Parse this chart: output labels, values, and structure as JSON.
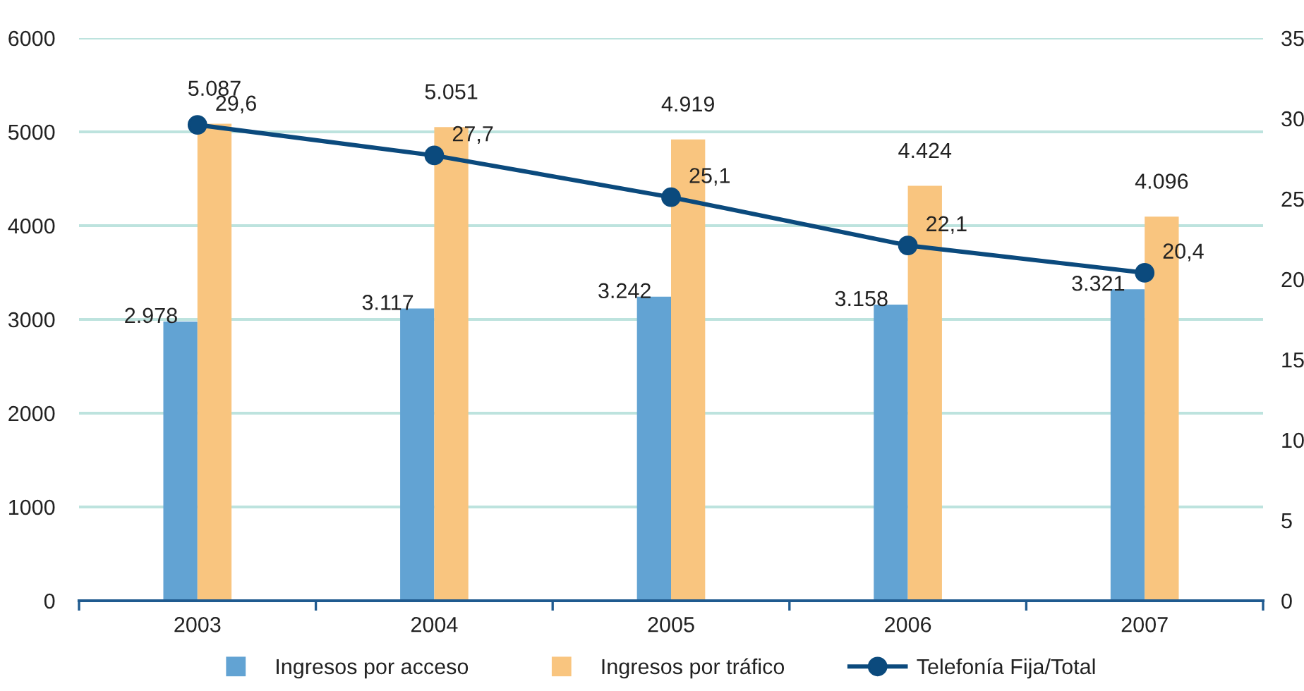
{
  "chart_data": {
    "type": "bar",
    "categories": [
      "2003",
      "2004",
      "2005",
      "2006",
      "2007"
    ],
    "series": [
      {
        "name": "Ingresos por acceso",
        "color": "#62a3d3",
        "values": [
          2978,
          3117,
          3242,
          3158,
          3321
        ],
        "value_labels": [
          "2.978",
          "3.117",
          "3.242",
          "3.158",
          "3.321"
        ]
      },
      {
        "name": "Ingresos por tráfico",
        "color": "#f9c57f",
        "values": [
          5087,
          5051,
          4919,
          4424,
          4096
        ],
        "value_labels": [
          "5.087",
          "5.051",
          "4.919",
          "4.424",
          "4.096"
        ]
      },
      {
        "name": "Telefonía Fija/Total",
        "type": "line",
        "axis": "y2",
        "color": "#0b4a7d",
        "values": [
          29.6,
          27.7,
          25.1,
          22.1,
          20.4
        ],
        "value_labels": [
          "29,6",
          "27,7",
          "25,1",
          "22,1",
          "20,4"
        ]
      }
    ],
    "ylim": [
      0,
      6000
    ],
    "yticks": [
      0,
      1000,
      2000,
      3000,
      4000,
      5000,
      6000
    ],
    "y2lim": [
      0,
      35
    ],
    "y2ticks": [
      0,
      5,
      10,
      15,
      20,
      25,
      30,
      35
    ],
    "grid": "y",
    "legend": "bottom",
    "marker": "circle"
  }
}
